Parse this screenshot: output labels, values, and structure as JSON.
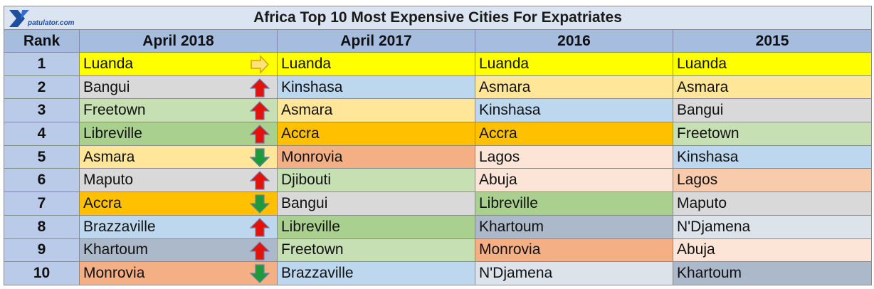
{
  "chart_data": {
    "type": "table",
    "title": "Africa Top 10 Most Expensive Cities For Expatriates",
    "logo_text": "patulator.com",
    "columns": [
      "Rank",
      "April 2018",
      "April 2017",
      "2016",
      "2015"
    ],
    "rows": [
      {
        "rank": "1",
        "cells": [
          {
            "city": "Luanda",
            "color": "#ffff00",
            "trend": "same"
          },
          {
            "city": "Luanda",
            "color": "#ffff00"
          },
          {
            "city": "Luanda",
            "color": "#ffff00"
          },
          {
            "city": "Luanda",
            "color": "#ffff00"
          }
        ]
      },
      {
        "rank": "2",
        "cells": [
          {
            "city": "Bangui",
            "color": "#d9d9d9",
            "trend": "up"
          },
          {
            "city": "Kinshasa",
            "color": "#bdd7ee"
          },
          {
            "city": "Asmara",
            "color": "#ffe699"
          },
          {
            "city": "Asmara",
            "color": "#ffe699"
          }
        ]
      },
      {
        "rank": "3",
        "cells": [
          {
            "city": "Freetown",
            "color": "#c6e0b4",
            "trend": "up"
          },
          {
            "city": "Asmara",
            "color": "#ffe699"
          },
          {
            "city": "Kinshasa",
            "color": "#bdd7ee"
          },
          {
            "city": "Bangui",
            "color": "#d9d9d9"
          }
        ]
      },
      {
        "rank": "4",
        "cells": [
          {
            "city": "Libreville",
            "color": "#a9d08e",
            "trend": "up"
          },
          {
            "city": "Accra",
            "color": "#ffc000"
          },
          {
            "city": "Accra",
            "color": "#ffc000"
          },
          {
            "city": "Freetown",
            "color": "#c6e0b4"
          }
        ]
      },
      {
        "rank": "5",
        "cells": [
          {
            "city": "Asmara",
            "color": "#ffe699",
            "trend": "down"
          },
          {
            "city": "Monrovia",
            "color": "#f4b084"
          },
          {
            "city": "Lagos",
            "color": "#fce4d6"
          },
          {
            "city": "Kinshasa",
            "color": "#bdd7ee"
          }
        ]
      },
      {
        "rank": "6",
        "cells": [
          {
            "city": "Maputo",
            "color": "#d9d9d9",
            "trend": "up"
          },
          {
            "city": "Djibouti",
            "color": "#c6e0b4"
          },
          {
            "city": "Abuja",
            "color": "#fce4d6"
          },
          {
            "city": "Lagos",
            "color": "#f8cbad"
          }
        ]
      },
      {
        "rank": "7",
        "cells": [
          {
            "city": "Accra",
            "color": "#ffc000",
            "trend": "down"
          },
          {
            "city": "Bangui",
            "color": "#d9d9d9"
          },
          {
            "city": "Libreville",
            "color": "#a9d08e"
          },
          {
            "city": "Maputo",
            "color": "#d9d9d9"
          }
        ]
      },
      {
        "rank": "8",
        "cells": [
          {
            "city": "Brazzaville",
            "color": "#bdd7ee",
            "trend": "up"
          },
          {
            "city": "Libreville",
            "color": "#a9d08e"
          },
          {
            "city": "Khartoum",
            "color": "#acb9ca"
          },
          {
            "city": "N'Djamena",
            "color": "#dde3ea"
          }
        ]
      },
      {
        "rank": "9",
        "cells": [
          {
            "city": "Khartoum",
            "color": "#acb9ca",
            "trend": "up"
          },
          {
            "city": "Freetown",
            "color": "#c6e0b4"
          },
          {
            "city": "Monrovia",
            "color": "#f4b084"
          },
          {
            "city": "Abuja",
            "color": "#fce4d6"
          }
        ]
      },
      {
        "rank": "10",
        "cells": [
          {
            "city": "Monrovia",
            "color": "#f4b084",
            "trend": "down"
          },
          {
            "city": "Brazzaville",
            "color": "#bdd7ee"
          },
          {
            "city": "N'Djamena",
            "color": "#dde3ea"
          },
          {
            "city": "Khartoum",
            "color": "#acb9ca"
          }
        ]
      }
    ]
  }
}
